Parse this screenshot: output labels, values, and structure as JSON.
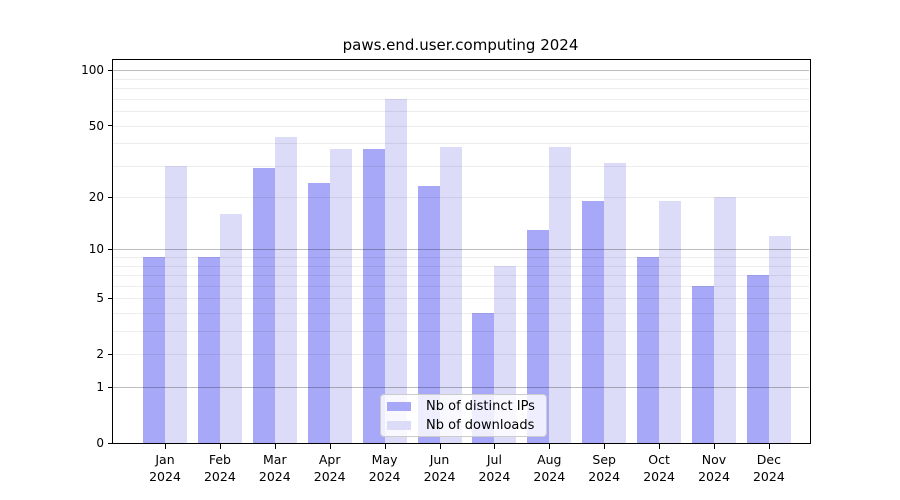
{
  "chart_data": {
    "type": "bar",
    "title": "paws.end.user.computing 2024",
    "categories": [
      "Jan 2024",
      "Feb 2024",
      "Mar 2024",
      "Apr 2024",
      "May 2024",
      "Jun 2024",
      "Jul 2024",
      "Aug 2024",
      "Sep 2024",
      "Oct 2024",
      "Nov 2024",
      "Dec 2024"
    ],
    "series": [
      {
        "name": "Nb of distinct IPs",
        "color": "#a8a8f8",
        "values": [
          9,
          9,
          29,
          24,
          37,
          23,
          4,
          13,
          19,
          9,
          6,
          7
        ]
      },
      {
        "name": "Nb of downloads",
        "color": "#dcdcf9",
        "values": [
          30,
          16,
          43,
          37,
          70,
          38,
          8,
          38,
          31,
          19,
          20,
          12
        ]
      }
    ],
    "xlabel": "",
    "ylabel": "",
    "yscale": "log1p",
    "ylim": [
      0,
      114
    ],
    "yticks": [
      100,
      50,
      20,
      10,
      5,
      2,
      1,
      0
    ],
    "grid": {
      "major": [
        1,
        10,
        100
      ],
      "minor": [
        2,
        3,
        4,
        5,
        6,
        7,
        8,
        9,
        20,
        30,
        40,
        50,
        60,
        70,
        80,
        90
      ]
    },
    "legend_position": "lower center"
  }
}
